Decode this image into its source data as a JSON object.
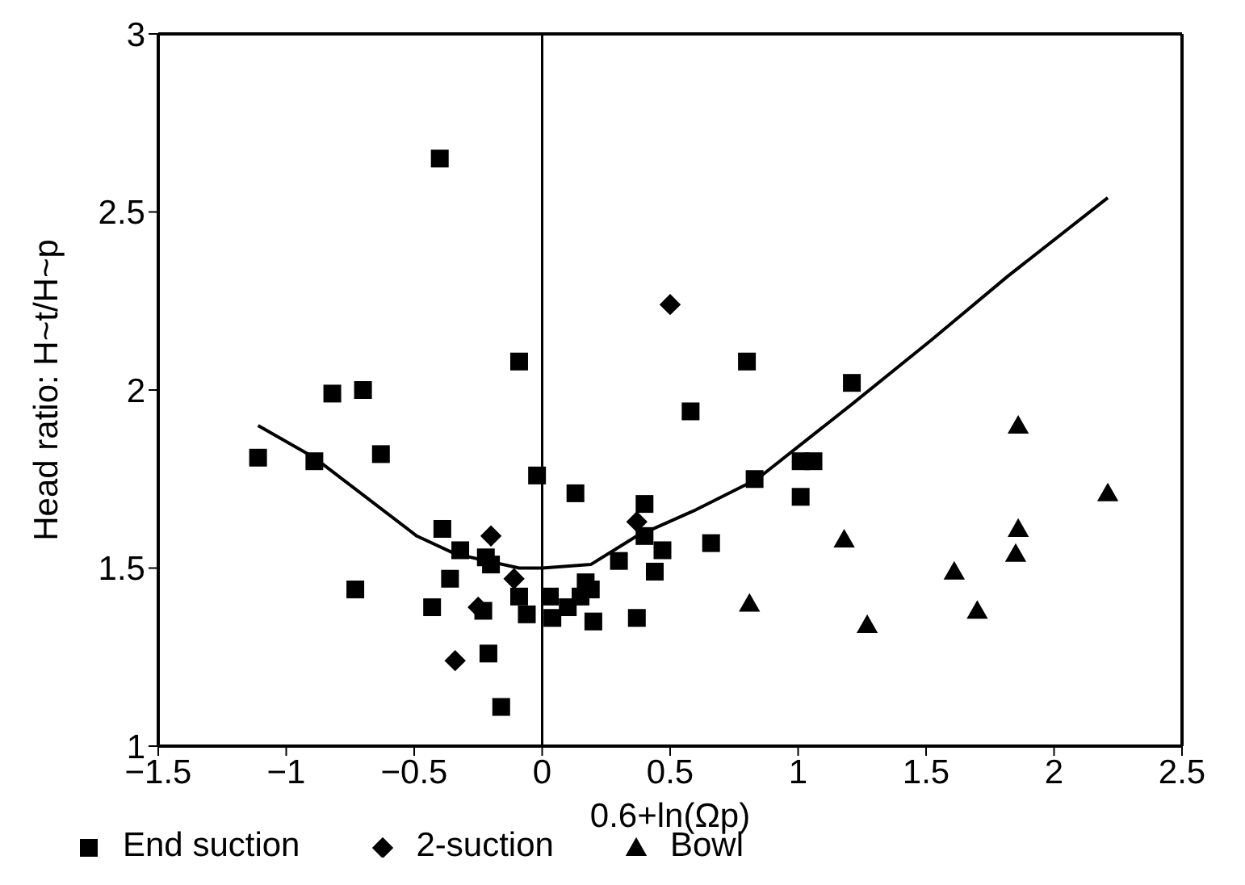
{
  "chart_data": {
    "type": "scatter",
    "xlabel": "0.6+ln(Ωp)",
    "ylabel": "Head ratio:   H~t/H~p",
    "xlim": [
      -1.5,
      2.5
    ],
    "xticks": [
      -1.5,
      -1,
      -0.5,
      0,
      0.5,
      1,
      1.5,
      2,
      2.5
    ],
    "ylim": [
      1,
      3
    ],
    "yticks": [
      1,
      1.5,
      2,
      2.5,
      3
    ],
    "legend": "bottom",
    "ref_lines": [
      {
        "axis": "x",
        "value": 0,
        "color": "#000000"
      }
    ],
    "series": [
      {
        "name": "End suction",
        "marker": "square",
        "color": "#000000",
        "x": [
          -1.11,
          -0.89,
          -0.82,
          -0.7,
          -0.63,
          -0.73,
          -0.4,
          -0.39,
          -0.32,
          -0.36,
          -0.43,
          -0.22,
          -0.2,
          -0.23,
          -0.21,
          -0.16,
          -0.09,
          -0.09,
          -0.06,
          -0.02,
          0.03,
          0.04,
          0.1,
          0.13,
          0.15,
          0.17,
          0.19,
          0.2,
          0.3,
          0.37,
          0.4,
          0.4,
          0.44,
          0.47,
          0.58,
          0.66,
          0.8,
          0.83,
          1.01,
          1.06,
          1.01,
          1.21
        ],
        "values": [
          1.81,
          1.8,
          1.99,
          2.0,
          1.82,
          1.44,
          2.65,
          1.61,
          1.55,
          1.47,
          1.39,
          1.53,
          1.51,
          1.38,
          1.26,
          1.11,
          2.08,
          1.42,
          1.37,
          1.76,
          1.42,
          1.36,
          1.39,
          1.71,
          1.42,
          1.46,
          1.44,
          1.35,
          1.52,
          1.36,
          1.68,
          1.59,
          1.49,
          1.55,
          1.94,
          1.57,
          2.08,
          1.75,
          1.8,
          1.8,
          1.7,
          2.02
        ]
      },
      {
        "name": "2-suction",
        "marker": "diamond",
        "color": "#000000",
        "x": [
          -0.2,
          -0.25,
          -0.34,
          -0.11,
          0.37,
          0.5
        ],
        "values": [
          1.59,
          1.39,
          1.24,
          1.47,
          1.63,
          2.24
        ]
      },
      {
        "name": "Bowl",
        "marker": "triangle",
        "color": "#000000",
        "x": [
          0.81,
          1.18,
          1.27,
          1.61,
          1.7,
          1.86,
          1.86,
          1.85,
          2.21
        ],
        "values": [
          1.4,
          1.58,
          1.34,
          1.49,
          1.38,
          1.9,
          1.61,
          1.54,
          1.71
        ]
      },
      {
        "type": "line",
        "marker": "none",
        "line_style": "solid",
        "color": "#000000",
        "x": [
          -1.11,
          -0.89,
          -0.49,
          -0.34,
          -0.09,
          0,
          0.19,
          0.37,
          0.59,
          0.84,
          1.21,
          1.52,
          1.82,
          2.21
        ],
        "values": [
          1.9,
          1.81,
          1.59,
          1.54,
          1.5,
          1.5,
          1.51,
          1.59,
          1.66,
          1.75,
          1.96,
          2.14,
          2.32,
          2.54
        ]
      }
    ]
  }
}
